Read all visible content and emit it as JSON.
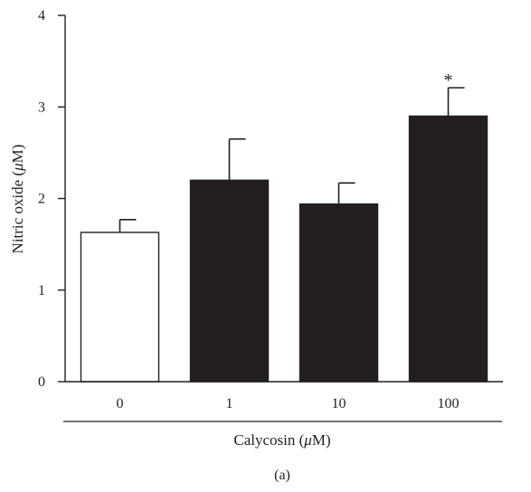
{
  "chart_data": {
    "type": "bar",
    "categories": [
      "0",
      "1",
      "10",
      "100"
    ],
    "values": [
      1.63,
      2.2,
      1.94,
      2.9
    ],
    "errors": [
      0.14,
      0.45,
      0.23,
      0.31
    ],
    "significance": [
      "",
      "",
      "",
      "*"
    ],
    "bar_fills": [
      "#ffffff",
      "#231f20",
      "#231f20",
      "#231f20"
    ],
    "title": "",
    "ylabel_parts": [
      "Nitric oxide (",
      "μ",
      "M)"
    ],
    "xlabel_parts": [
      "Calycosin (",
      "μ",
      "M)"
    ],
    "ylim": [
      0,
      4
    ],
    "yticks": [
      0,
      1,
      2,
      3,
      4
    ],
    "grid": false,
    "legend": "none",
    "panel_label": "(a)"
  }
}
